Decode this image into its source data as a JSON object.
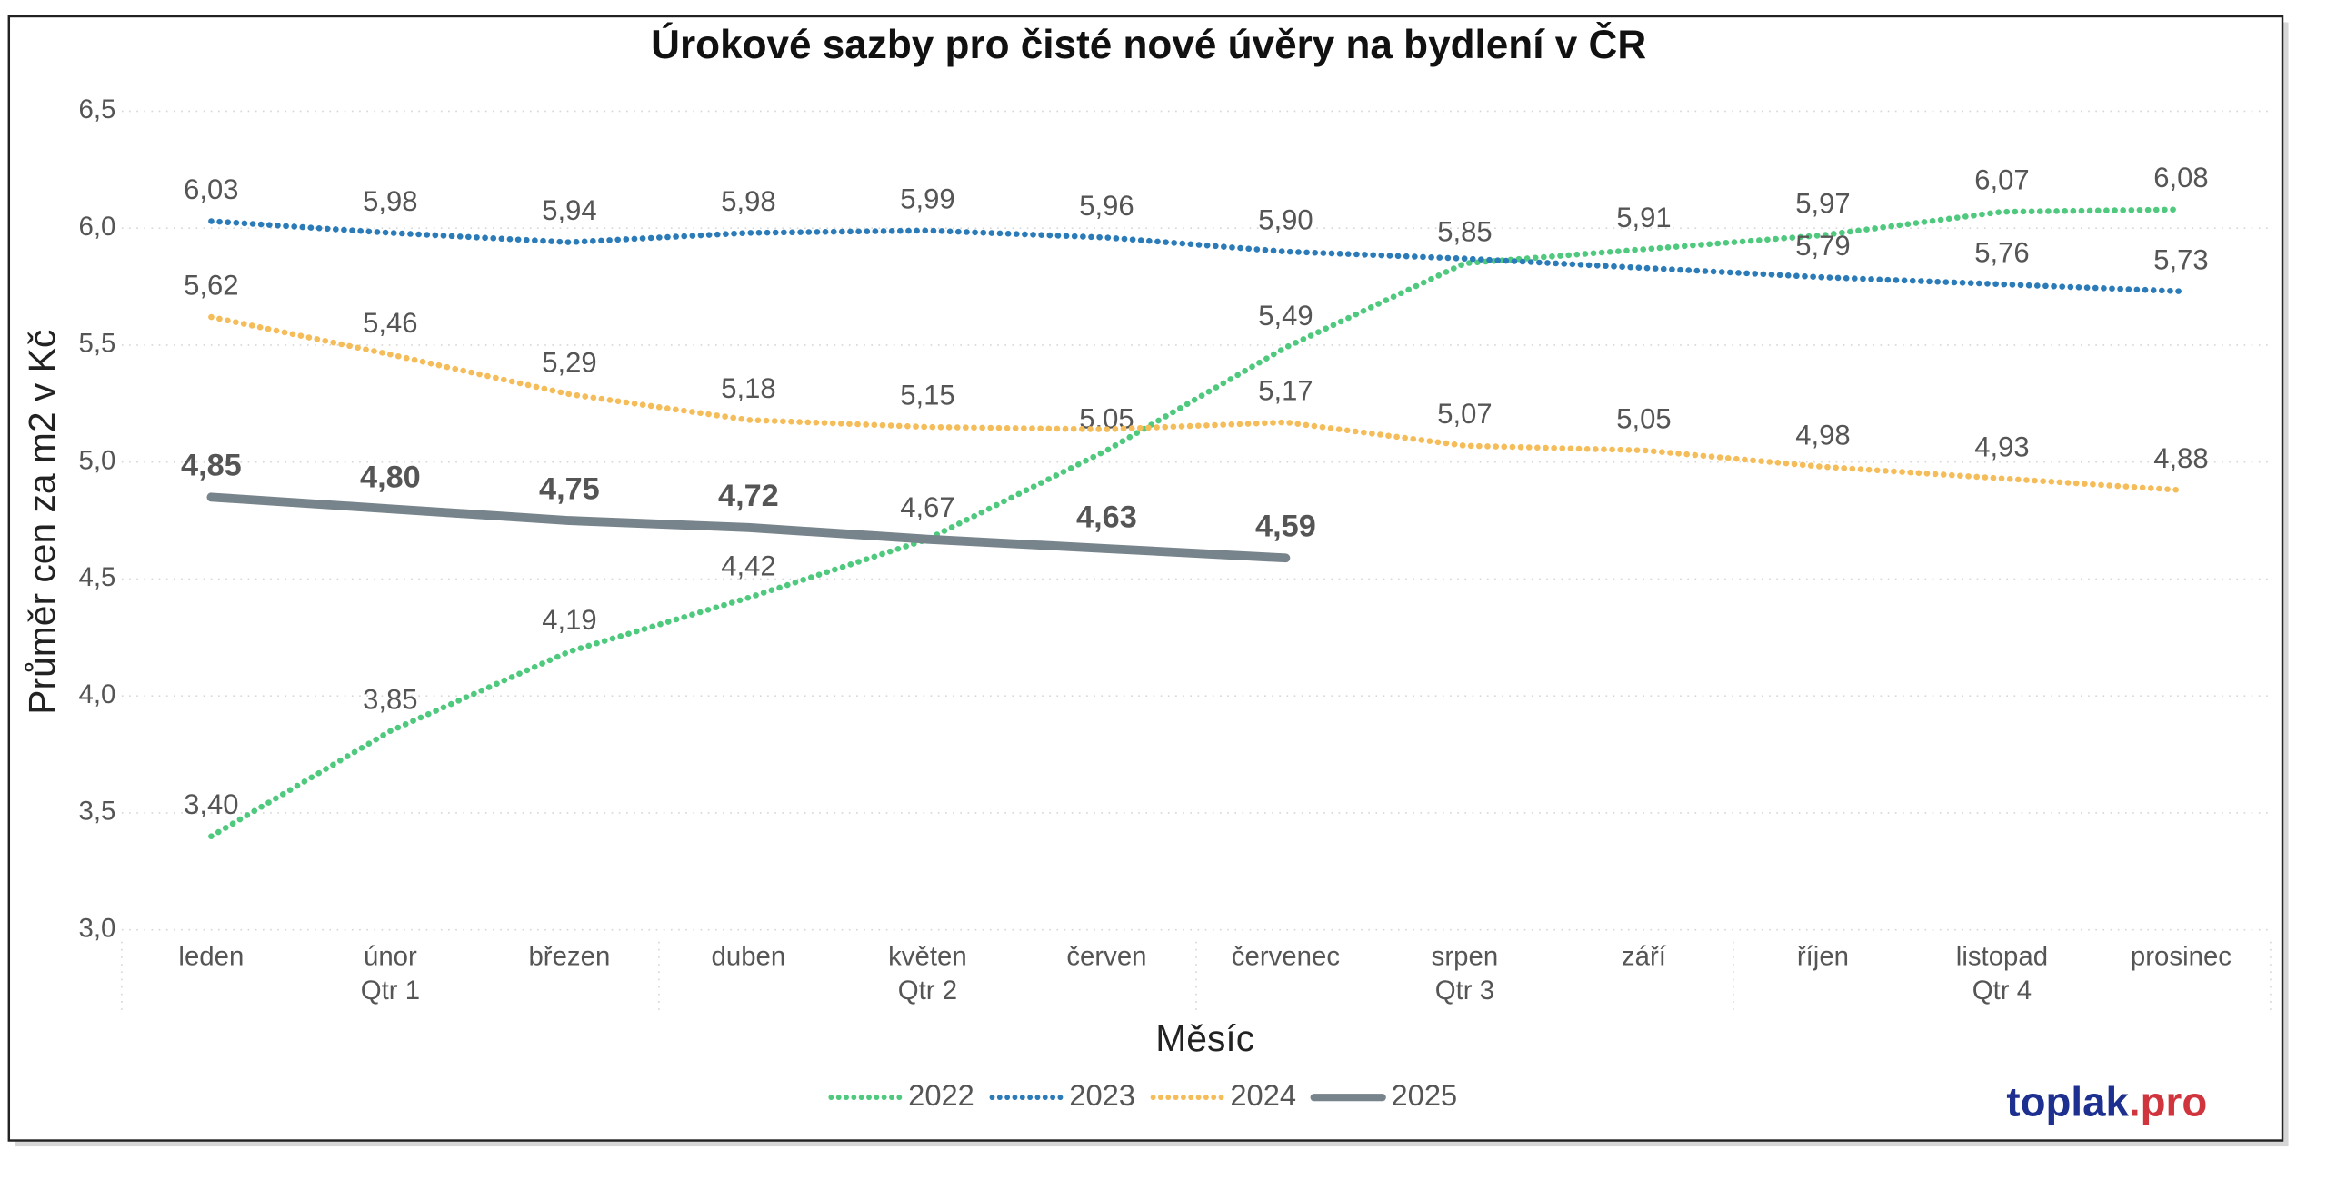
{
  "chart_data": {
    "type": "line",
    "title": "Úrokové sazby pro čisté nové úvěry na bydlení v ČR",
    "x_label": "Měsíc",
    "y_label": "Průměr cen za m2 v Kč",
    "categories": [
      "leden",
      "únor",
      "březen",
      "duben",
      "květen",
      "červen",
      "červenec",
      "srpen",
      "září",
      "říjen",
      "listopad",
      "prosinec"
    ],
    "quarters": [
      "Qtr 1",
      "Qtr 2",
      "Qtr 3",
      "Qtr 4"
    ],
    "ylim": [
      3.0,
      6.5
    ],
    "yticks": [
      {
        "value": 3.0,
        "label": "3,0"
      },
      {
        "value": 3.5,
        "label": "3,5"
      },
      {
        "value": 4.0,
        "label": "4,0"
      },
      {
        "value": 4.5,
        "label": "4,5"
      },
      {
        "value": 5.0,
        "label": "5,0"
      },
      {
        "value": 5.5,
        "label": "5,5"
      },
      {
        "value": 6.0,
        "label": "6,0"
      },
      {
        "value": 6.5,
        "label": "6,5"
      }
    ],
    "grid": true,
    "legend": "bottom",
    "series": [
      {
        "name": "2022",
        "color": "#4fc97e",
        "line_style": "dotted",
        "values": [
          3.4,
          3.85,
          4.19,
          4.42,
          4.67,
          5.05,
          5.49,
          5.85,
          5.91,
          5.97,
          6.07,
          6.08
        ],
        "value_labels": [
          "3,40",
          "3,85",
          "4,19",
          "4,42",
          "4,67",
          "5,05",
          "5,49",
          "5,85",
          "5,91",
          "5,97",
          "6,07",
          "6,08"
        ]
      },
      {
        "name": "2023",
        "color": "#2b7bb9",
        "line_style": "dotted",
        "values": [
          6.03,
          5.98,
          5.94,
          5.98,
          5.99,
          5.96,
          5.9,
          5.87,
          5.83,
          5.79,
          5.76,
          5.73
        ],
        "value_labels": [
          "6,03",
          "5,98",
          "5,94",
          "5,98",
          "5,99",
          "5,96",
          "5,90",
          null,
          null,
          "5,79",
          "5,76",
          "5,73"
        ]
      },
      {
        "name": "2024",
        "color": "#f5bd5a",
        "line_style": "dotted",
        "values": [
          5.62,
          5.46,
          5.29,
          5.18,
          5.15,
          5.14,
          5.17,
          5.07,
          5.05,
          4.98,
          4.93,
          4.88
        ],
        "value_labels": [
          "5,62",
          "5,46",
          "5,29",
          "5,18",
          "5,15",
          null,
          "5,17",
          "5,07",
          "5,05",
          "4,98",
          "4,93",
          "4,88"
        ]
      },
      {
        "name": "2025",
        "color": "#78848b",
        "line_style": "solid",
        "values": [
          4.85,
          4.8,
          4.75,
          4.72,
          4.67,
          4.63,
          4.59,
          null,
          null,
          null,
          null,
          null
        ],
        "value_labels": [
          "4,85",
          "4,80",
          "4,75",
          "4,72",
          null,
          "4,63",
          "4,59",
          null,
          null,
          null,
          null,
          null
        ]
      }
    ],
    "logo": [
      "toplak",
      ".pro"
    ]
  }
}
